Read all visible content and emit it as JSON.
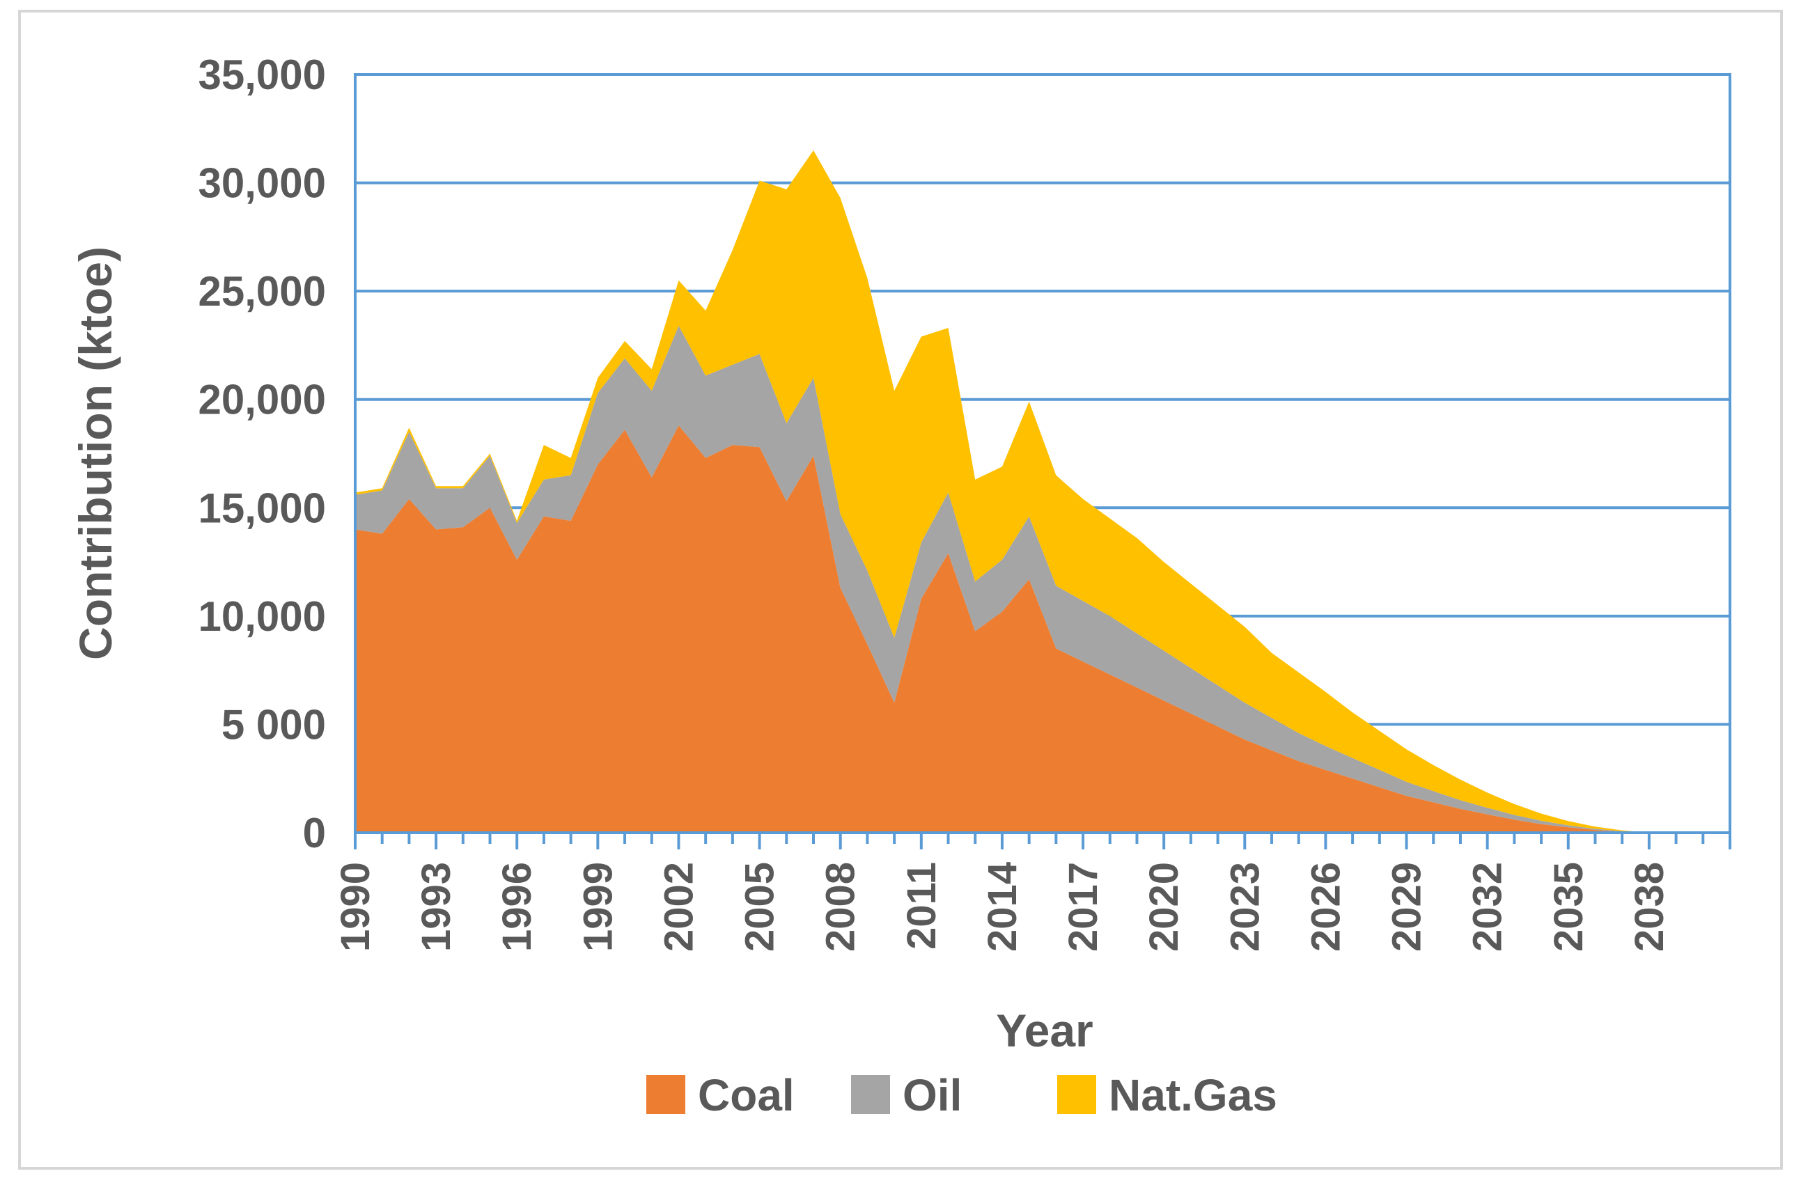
{
  "chart_data": {
    "type": "area",
    "stacked": true,
    "title": "",
    "xlabel": "Year",
    "ylabel": "Contribution (ktoe)",
    "ylim": [
      0,
      35000
    ],
    "xlim": [
      1990,
      2041
    ],
    "y_ticks": [
      0,
      5000,
      10000,
      15000,
      20000,
      25000,
      30000,
      35000
    ],
    "y_tick_labels": [
      "0",
      "5 000",
      "10,000",
      "15,000",
      "20,000",
      "25,000",
      "30,000",
      "35,000"
    ],
    "x_tick_labels": [
      "1990",
      "1993",
      "1996",
      "1999",
      "2002",
      "2005",
      "2008",
      "2011",
      "2014",
      "2017",
      "2020",
      "2023",
      "2026",
      "2029",
      "2032",
      "2035",
      "2038"
    ],
    "grid": true,
    "legend_position": "bottom",
    "x": [
      1990,
      1991,
      1992,
      1993,
      1994,
      1995,
      1996,
      1997,
      1998,
      1999,
      2000,
      2001,
      2002,
      2003,
      2004,
      2005,
      2006,
      2007,
      2008,
      2009,
      2010,
      2011,
      2012,
      2013,
      2014,
      2015,
      2016,
      2017,
      2018,
      2019,
      2020,
      2021,
      2022,
      2023,
      2024,
      2025,
      2026,
      2027,
      2028,
      2029,
      2030,
      2031,
      2032,
      2033,
      2034,
      2035,
      2036,
      2037,
      2038
    ],
    "series": [
      {
        "name": "Coal",
        "color": "#ed7d31",
        "values": [
          14000,
          13800,
          15400,
          14000,
          14100,
          15000,
          12600,
          14600,
          14400,
          17000,
          18600,
          16400,
          18800,
          17300,
          17900,
          17800,
          15300,
          17400,
          11300,
          8700,
          6000,
          10800,
          12900,
          9300,
          10200,
          11700,
          8500,
          7900,
          7300,
          6700,
          6100,
          5500,
          4900,
          4300,
          3800,
          3300,
          2900,
          2500,
          2100,
          1700,
          1400,
          1100,
          850,
          600,
          400,
          250,
          130,
          50,
          0
        ]
      },
      {
        "name": "Oil",
        "color": "#a5a5a5",
        "values": [
          1600,
          2000,
          3100,
          1900,
          1800,
          2400,
          1700,
          1700,
          2100,
          3300,
          3300,
          4000,
          4600,
          3800,
          3700,
          4300,
          3600,
          3600,
          3400,
          3400,
          3000,
          2600,
          2800,
          2300,
          2400,
          2900,
          2900,
          2800,
          2700,
          2500,
          2300,
          2100,
          1900,
          1700,
          1500,
          1300,
          1100,
          950,
          800,
          650,
          520,
          400,
          300,
          220,
          150,
          90,
          50,
          20,
          0
        ]
      },
      {
        "name": "Nat.Gas",
        "color": "#ffc000",
        "values": [
          100,
          100,
          200,
          100,
          100,
          100,
          100,
          1600,
          800,
          700,
          800,
          1000,
          2100,
          3000,
          5300,
          8000,
          10800,
          10500,
          14600,
          13500,
          11400,
          9500,
          7600,
          4700,
          4300,
          5300,
          5100,
          4700,
          4500,
          4400,
          4100,
          3900,
          3700,
          3500,
          3000,
          2800,
          2500,
          2100,
          1800,
          1500,
          1200,
          950,
          700,
          500,
          330,
          200,
          100,
          40,
          0
        ]
      }
    ]
  }
}
